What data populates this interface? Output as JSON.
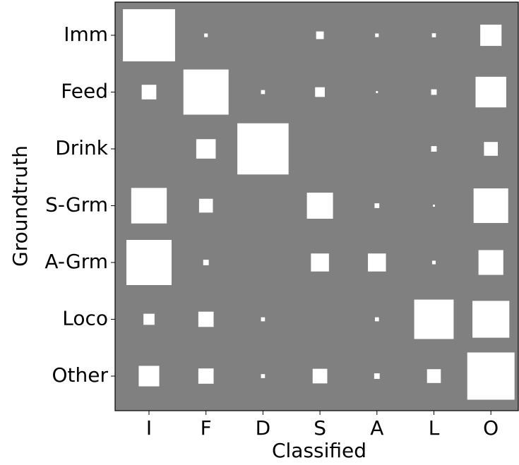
{
  "chart_data": {
    "type": "hinton",
    "x_label": "Classified",
    "y_label": "Groundtruth",
    "x_categories": [
      "I",
      "F",
      "D",
      "S",
      "A",
      "L",
      "O"
    ],
    "y_categories": [
      "Imm",
      "Feed",
      "Drink",
      "S-Grm",
      "A-Grm",
      "Loco",
      "Other"
    ],
    "values": [
      [
        0.84,
        0.004,
        0,
        0.018,
        0.004,
        0.005,
        0.14
      ],
      [
        0.066,
        0.63,
        0.005,
        0.029,
        0.0013,
        0.0095,
        0.29
      ],
      [
        0,
        0.117,
        0.81,
        0,
        0,
        0.0095,
        0.059
      ],
      [
        0.39,
        0.059,
        0,
        0.21,
        0.007,
        0.0013,
        0.37
      ],
      [
        0.63,
        0.0095,
        0,
        0.1,
        0.1,
        0.004,
        0.19
      ],
      [
        0.038,
        0.072,
        0.005,
        0,
        0.005,
        0.48,
        0.42
      ],
      [
        0.13,
        0.072,
        0.005,
        0.066,
        0.0095,
        0.059,
        0.69
      ]
    ],
    "background": "#808080",
    "color": "#ffffff"
  }
}
